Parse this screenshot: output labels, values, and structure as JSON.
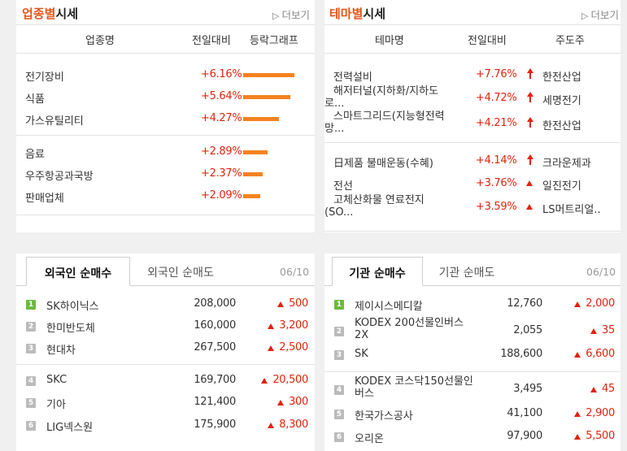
{
  "industry": {
    "title_accent": "업종별",
    "title_rest": "시세",
    "more_label": "더보기",
    "headers": [
      "업종명",
      "전일대비",
      "등락그래프"
    ],
    "rows": [
      {
        "name": "전기장비",
        "change": "+6.16%",
        "value": 6.16
      },
      {
        "name": "식품",
        "change": "+5.64%",
        "value": 5.64
      },
      {
        "name": "가스유틸리티",
        "change": "+4.27%",
        "value": 4.27
      },
      {
        "name": "음료",
        "change": "+2.89%",
        "value": 2.89
      },
      {
        "name": "우주항공과국방",
        "change": "+2.37%",
        "value": 2.37
      },
      {
        "name": "판매업체",
        "change": "+2.09%",
        "value": 2.09
      }
    ]
  },
  "theme": {
    "title_accent": "테마별",
    "title_rest": "시세",
    "more_label": "더보기",
    "headers": [
      "테마명",
      "전일대비",
      "주도주"
    ],
    "rows": [
      {
        "name1": "전력설비",
        "name2": "",
        "change": "+7.76%",
        "leader": "한전산업",
        "icon": "arrow-up-icon"
      },
      {
        "name1": "해저터널(지하화/지하도",
        "name2": "로...",
        "change": "+4.72%",
        "leader": "세명전기",
        "icon": "arrow-up-icon"
      },
      {
        "name1": "스마트그리드(지능형전력",
        "name2": "망...",
        "change": "+4.21%",
        "leader": "한전산업",
        "icon": "arrow-up-icon"
      },
      {
        "name1": "日제품 불매운동(수혜)",
        "name2": "",
        "change": "+4.14%",
        "leader": "크라운제과",
        "icon": "arrow-up-icon"
      },
      {
        "name1": "전선",
        "name2": "",
        "change": "+3.76%",
        "leader": "일진전기",
        "icon": "triangle-up-icon"
      },
      {
        "name1": "고체산화물 연료전지",
        "name2": "(SO...",
        "change": "+3.59%",
        "leader": "LS머트리얼..",
        "icon": "triangle-up-icon"
      }
    ]
  },
  "foreign": {
    "tab_active": "외국인 순매수",
    "tab_inactive": "외국인 순매도",
    "date": "06/10",
    "rows": [
      {
        "rank": "1",
        "name1": "SK하이닉스",
        "name2": "",
        "price": "208,000",
        "change": "500"
      },
      {
        "rank": "2",
        "name1": "한미반도체",
        "name2": "",
        "price": "160,000",
        "change": "3,200"
      },
      {
        "rank": "3",
        "name1": "현대차",
        "name2": "",
        "price": "267,500",
        "change": "2,500"
      },
      {
        "rank": "4",
        "name1": "SKC",
        "name2": "",
        "price": "169,700",
        "change": "20,500"
      },
      {
        "rank": "5",
        "name1": "기아",
        "name2": "",
        "price": "121,400",
        "change": "300"
      },
      {
        "rank": "6",
        "name1": "LIG넥스원",
        "name2": "",
        "price": "175,900",
        "change": "8,300"
      }
    ]
  },
  "institution": {
    "tab_active": "기관 순매수",
    "tab_inactive": "기관 순매도",
    "date": "06/10",
    "rows": [
      {
        "rank": "1",
        "name1": "제이시스메디칼",
        "name2": "",
        "price": "12,760",
        "change": "2,000"
      },
      {
        "rank": "2",
        "name1": "KODEX 200선물인버스",
        "name2": "2X",
        "price": "2,055",
        "change": "35"
      },
      {
        "rank": "3",
        "name1": "SK",
        "name2": "",
        "price": "188,600",
        "change": "6,600"
      },
      {
        "rank": "4",
        "name1": "KODEX 코스닥150선물인",
        "name2": "버스",
        "price": "3,495",
        "change": "45"
      },
      {
        "rank": "5",
        "name1": "한국가스공사",
        "name2": "",
        "price": "41,100",
        "change": "2,900"
      },
      {
        "rank": "6",
        "name1": "오리온",
        "name2": "",
        "price": "97,900",
        "change": "5,500"
      }
    ]
  },
  "colors": {
    "accent": "#e5541c",
    "up": "#e0230e",
    "bar": "#f58220",
    "rank_top": "#6cba3a",
    "rank_other": "#bbbbbb"
  }
}
